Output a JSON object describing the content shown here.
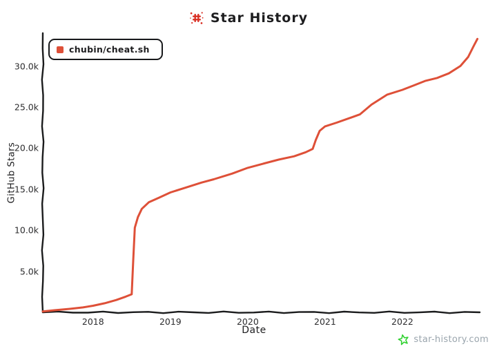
{
  "title": {
    "text": "Star History"
  },
  "legend": {
    "items": [
      {
        "label": "chubin/cheat.sh",
        "color": "#de5038"
      }
    ]
  },
  "watermark": {
    "text": "star-history.com"
  },
  "colors": {
    "series": "#de5038",
    "axis": "#1a1b1c",
    "tick_text": "#2c2c2e",
    "title_icon": "#d93025",
    "watermark_text": "#9aa5ad",
    "watermark_star": "#2fd12f"
  },
  "chart_data": {
    "type": "line",
    "title": "Star History",
    "xlabel": "Date",
    "ylabel": "GitHub Stars",
    "xlim": [
      2017.35,
      2023.0
    ],
    "ylim": [
      0,
      34000
    ],
    "grid": false,
    "legend_position": "top-left-inside",
    "x_ticks": [
      {
        "value": 2018,
        "label": "2018"
      },
      {
        "value": 2019,
        "label": "2019"
      },
      {
        "value": 2020,
        "label": "2020"
      },
      {
        "value": 2021,
        "label": "2021"
      },
      {
        "value": 2022,
        "label": "2022"
      }
    ],
    "y_ticks": [
      {
        "value": 5000,
        "label": "5.0k"
      },
      {
        "value": 10000,
        "label": "10.0k"
      },
      {
        "value": 15000,
        "label": "15.0k"
      },
      {
        "value": 20000,
        "label": "20.0k"
      },
      {
        "value": 25000,
        "label": "25.0k"
      },
      {
        "value": 30000,
        "label": "30.0k"
      }
    ],
    "series": [
      {
        "name": "chubin/cheat.sh",
        "color": "#de5038",
        "points": [
          [
            2017.35,
            100
          ],
          [
            2017.5,
            250
          ],
          [
            2017.7,
            420
          ],
          [
            2017.87,
            600
          ],
          [
            2018.0,
            800
          ],
          [
            2018.15,
            1100
          ],
          [
            2018.3,
            1500
          ],
          [
            2018.42,
            1900
          ],
          [
            2018.5,
            2200
          ],
          [
            2018.52,
            6500
          ],
          [
            2018.54,
            10300
          ],
          [
            2018.58,
            11600
          ],
          [
            2018.63,
            12600
          ],
          [
            2018.72,
            13400
          ],
          [
            2018.85,
            13950
          ],
          [
            2019.0,
            14600
          ],
          [
            2019.2,
            15200
          ],
          [
            2019.4,
            15800
          ],
          [
            2019.56,
            16200
          ],
          [
            2019.8,
            16900
          ],
          [
            2020.0,
            17600
          ],
          [
            2020.2,
            18100
          ],
          [
            2020.4,
            18600
          ],
          [
            2020.6,
            19000
          ],
          [
            2020.75,
            19500
          ],
          [
            2020.84,
            19900
          ],
          [
            2020.88,
            21000
          ],
          [
            2020.93,
            22100
          ],
          [
            2021.0,
            22650
          ],
          [
            2021.15,
            23100
          ],
          [
            2021.3,
            23600
          ],
          [
            2021.45,
            24100
          ],
          [
            2021.6,
            25300
          ],
          [
            2021.8,
            26500
          ],
          [
            2022.0,
            27100
          ],
          [
            2022.15,
            27650
          ],
          [
            2022.3,
            28200
          ],
          [
            2022.45,
            28550
          ],
          [
            2022.6,
            29100
          ],
          [
            2022.75,
            30000
          ],
          [
            2022.85,
            31100
          ],
          [
            2022.92,
            32400
          ],
          [
            2022.97,
            33300
          ]
        ]
      }
    ]
  }
}
